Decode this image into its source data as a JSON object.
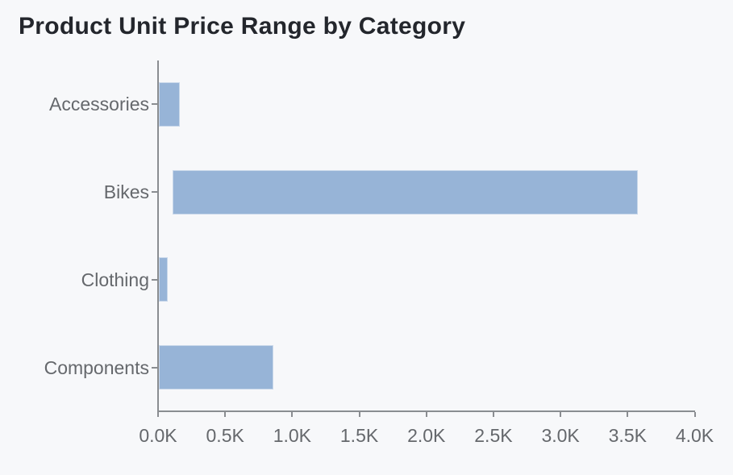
{
  "title": "Product Unit Price Range by Category",
  "colors": {
    "background": "#f7f8fa",
    "bar_fill": "#97b4d7",
    "bar_edge": "#c9d8ea",
    "axis_line": "#8a8d91",
    "tick_label": "#65686c",
    "title_text": "#23262c"
  },
  "chart_data": {
    "type": "bar",
    "orientation": "horizontal",
    "title": "Product Unit Price Range by Category",
    "xlabel": "",
    "ylabel": "",
    "grid": false,
    "legend": "none",
    "categories": [
      "Accessories",
      "Bikes",
      "Clothing",
      "Components"
    ],
    "series": [
      {
        "name": "Unit Price Range",
        "ranges": [
          {
            "category": "Accessories",
            "min": 5,
            "max": 160
          },
          {
            "category": "Bikes",
            "min": 110,
            "max": 3578
          },
          {
            "category": "Clothing",
            "min": 7,
            "max": 73
          },
          {
            "category": "Components",
            "min": 9,
            "max": 858
          }
        ]
      }
    ],
    "xlim": [
      0,
      4000
    ],
    "x_tick_values": [
      0,
      500,
      1000,
      1500,
      2000,
      2500,
      3000,
      3500,
      4000
    ],
    "x_tick_labels": [
      "0.0K",
      "0.5K",
      "1.0K",
      "1.5K",
      "2.0K",
      "2.5K",
      "3.0K",
      "3.5K",
      "4.0K"
    ]
  }
}
